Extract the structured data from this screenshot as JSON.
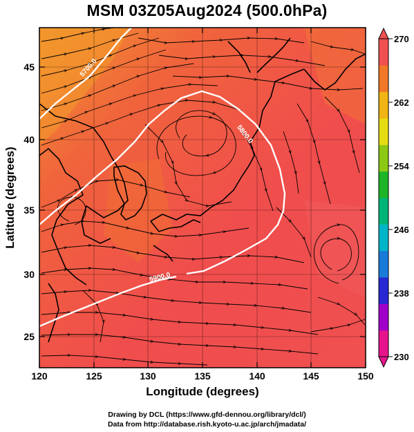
{
  "title": "MSM 03Z05Aug2024 (500.0hPa)",
  "axes": {
    "xlabel": "Longitude (degrees)",
    "ylabel": "Latitude  (degrees)",
    "x_ticks": [
      "120",
      "125",
      "130",
      "135",
      "140",
      "145",
      "150"
    ],
    "y_ticks": [
      "25",
      "30",
      "35",
      "40",
      "45"
    ]
  },
  "colorbar": {
    "labels": [
      "270",
      "262",
      "254",
      "246",
      "238",
      "230"
    ],
    "min": 230,
    "max": 270,
    "colors": [
      "#e6148c",
      "#a000c8",
      "#2828d2",
      "#1a7ad8",
      "#00b4c8",
      "#00b478",
      "#1eb428",
      "#8cc814",
      "#e6dc14",
      "#f0b414",
      "#f07828",
      "#f05050"
    ]
  },
  "contours": [
    {
      "label": "5700.0"
    },
    {
      "label": "5800.0"
    },
    {
      "label": "5900.0"
    }
  ],
  "credits": {
    "line1": "Drawing by DCL (https://www.gfd-dennou.org/library/dcl/)",
    "line2": "Data from http://database.rish.kyoto-u.ac.jp/arch/jmadata/"
  }
}
